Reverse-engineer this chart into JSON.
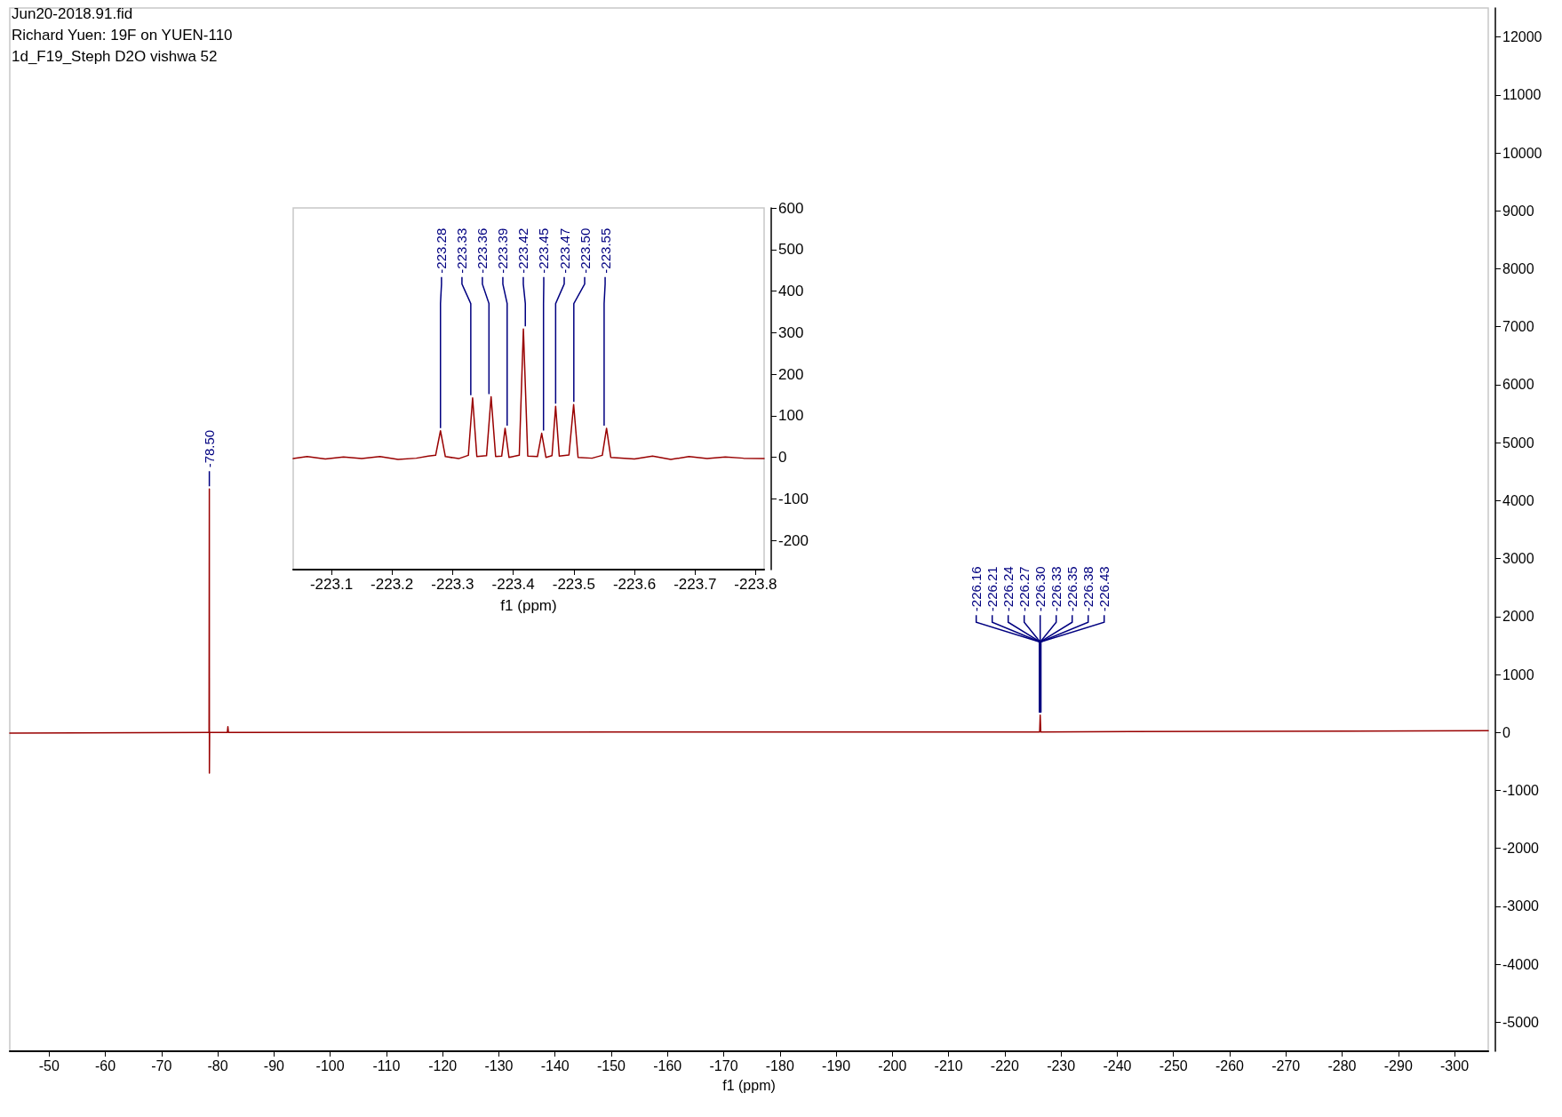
{
  "chart_data": [
    {
      "type": "line",
      "title": "Jun20-2018.91.fid",
      "subtitle": "Richard Yuen: 19F on YUEN-110",
      "xlabel": "f1 (ppm)",
      "xlim": [
        -43,
        -306
      ],
      "xticks": [
        -50,
        -60,
        -70,
        -80,
        -90,
        -100,
        -110,
        -120,
        -130,
        -140,
        -150,
        -160,
        -170,
        -180,
        -190,
        -200,
        -210,
        -220,
        -230,
        -240,
        -250,
        -260,
        -270,
        -280,
        -290,
        -300
      ],
      "ylim": [
        -5500,
        12500
      ],
      "yticks": [
        -5000,
        -4000,
        -3000,
        -2000,
        -1000,
        0,
        1000,
        2000,
        3000,
        4000,
        5000,
        6000,
        7000,
        8000,
        9000,
        10000,
        11000,
        12000
      ],
      "marker": "none",
      "color": "#990000",
      "x": [
        -43,
        -78.3,
        -78.45,
        -78.5,
        -78.51,
        -78.55,
        -81.7,
        -81.8,
        -81.9,
        -150,
        -226.2,
        -226.3,
        -226.4,
        -306
      ],
      "values": [
        -10,
        0,
        0,
        4200,
        -700,
        0,
        0,
        100,
        0,
        10,
        10,
        300,
        10,
        30
      ],
      "annotations": [
        "1d_F19_Steph D2O vishwa 52",
        {
          "text": "-78.50",
          "x": -78.5,
          "y": 4200
        },
        {
          "text": "-226.16",
          "x": -226.16,
          "y": 300
        },
        {
          "text": "-226.21",
          "x": -226.21,
          "y": 300
        },
        {
          "text": "-226.24",
          "x": -226.24,
          "y": 300
        },
        {
          "text": "-226.27",
          "x": -226.27,
          "y": 300
        },
        {
          "text": "-226.30",
          "x": -226.3,
          "y": 300
        },
        {
          "text": "-226.33",
          "x": -226.33,
          "y": 300
        },
        {
          "text": "-226.35",
          "x": -226.35,
          "y": 300
        },
        {
          "text": "-226.38",
          "x": -226.38,
          "y": 300
        },
        {
          "text": "-226.43",
          "x": -226.43,
          "y": 300
        }
      ]
    },
    {
      "type": "line",
      "xlabel": "f1 (ppm)",
      "xlim": [
        -223.037,
        -223.814
      ],
      "xticks": [
        -223.1,
        -223.2,
        -223.3,
        -223.4,
        -223.5,
        -223.6,
        -223.7,
        -223.8
      ],
      "ylim": [
        -270,
        600
      ],
      "yticks": [
        -200,
        -100,
        0,
        100,
        200,
        300,
        400,
        500,
        600
      ],
      "marker": "none",
      "color": "#990000",
      "x": [
        -223.037,
        -223.06,
        -223.09,
        -223.12,
        -223.15,
        -223.18,
        -223.21,
        -223.24,
        -223.26,
        -223.272,
        -223.28,
        -223.288,
        -223.31,
        -223.326,
        -223.333,
        -223.34,
        -223.356,
        -223.3635,
        -223.371,
        -223.381,
        -223.3866,
        -223.393,
        -223.41,
        -223.4168,
        -223.424,
        -223.44,
        -223.447,
        -223.454,
        -223.464,
        -223.47,
        -223.476,
        -223.492,
        -223.4997,
        -223.507,
        -223.53,
        -223.547,
        -223.554,
        -223.561,
        -223.6,
        -223.63,
        -223.66,
        -223.69,
        -223.72,
        -223.75,
        -223.78,
        -223.814
      ],
      "values": [
        -3,
        2,
        -4,
        1,
        -3,
        2,
        -5,
        -2,
        3,
        5,
        64,
        2,
        -3,
        5,
        143,
        2,
        4,
        146,
        2,
        3,
        70,
        0,
        5,
        309,
        3,
        2,
        58,
        0,
        4,
        123,
        3,
        6,
        127,
        0,
        -2,
        5,
        70,
        0,
        -4,
        3,
        -5,
        2,
        -3,
        1,
        -2,
        -3
      ],
      "annotations": [
        {
          "text": "-223.28",
          "x": -223.28,
          "y": 64
        },
        {
          "text": "-223.33",
          "x": -223.33,
          "y": 143
        },
        {
          "text": "-223.36",
          "x": -223.36,
          "y": 146
        },
        {
          "text": "-223.39",
          "x": -223.39,
          "y": 70
        },
        {
          "text": "-223.42",
          "x": -223.42,
          "y": 309
        },
        {
          "text": "-223.45",
          "x": -223.45,
          "y": 58
        },
        {
          "text": "-223.47",
          "x": -223.47,
          "y": 123
        },
        {
          "text": "-223.50",
          "x": -223.5,
          "y": 127
        },
        {
          "text": "-223.55",
          "x": -223.55,
          "y": 70
        }
      ]
    }
  ]
}
